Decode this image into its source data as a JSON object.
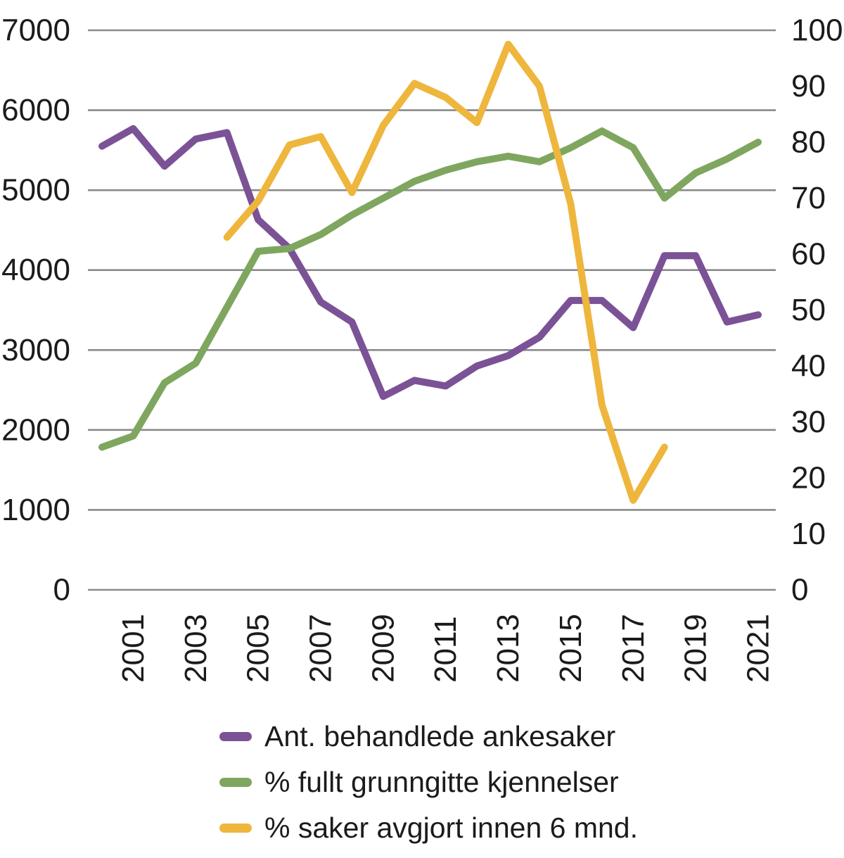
{
  "chart_data": {
    "type": "line",
    "title": "",
    "x": [
      2000,
      2001,
      2002,
      2003,
      2004,
      2005,
      2006,
      2007,
      2008,
      2009,
      2010,
      2011,
      2012,
      2013,
      2014,
      2015,
      2016,
      2017,
      2018,
      2019,
      2020,
      2021
    ],
    "x_tick_labels": [
      2001,
      2003,
      2005,
      2007,
      2009,
      2011,
      2013,
      2015,
      2017,
      2019,
      2021
    ],
    "left_axis": {
      "min": 0,
      "max": 7000,
      "ticks": [
        0,
        1000,
        2000,
        3000,
        4000,
        5000,
        6000,
        7000
      ]
    },
    "right_axis": {
      "min": 0,
      "max": 100,
      "ticks": [
        0,
        10,
        20,
        30,
        40,
        50,
        60,
        70,
        80,
        90,
        100
      ]
    },
    "grid": true,
    "legend_position": "bottom-left",
    "series": [
      {
        "id": "ankesaker",
        "name": "Ant. behandlede ankesaker",
        "axis": "left",
        "color": "#7B5296",
        "values": [
          5550,
          5770,
          5300,
          5640,
          5720,
          4630,
          4270,
          3600,
          3350,
          2420,
          2620,
          2550,
          2800,
          2930,
          3160,
          3620,
          3620,
          3280,
          4180,
          4180,
          3350,
          3440
        ]
      },
      {
        "id": "grunngitte",
        "name": "% fullt grunngitte kjennelser",
        "axis": "right",
        "color": "#7FA65F",
        "values": [
          25.5,
          27.5,
          37,
          40.5,
          50.5,
          60.5,
          61,
          63.5,
          67,
          70,
          73,
          75,
          76.5,
          77.5,
          76.5,
          79,
          82,
          79,
          70,
          74.5,
          77,
          80
        ]
      },
      {
        "id": "innen6mnd",
        "name": "% saker avgjort innen 6 mnd.",
        "axis": "right",
        "color": "#EEB63D",
        "values": [
          null,
          null,
          null,
          null,
          63,
          69.5,
          79.5,
          81,
          71,
          83,
          90.5,
          88,
          83.5,
          97.5,
          90,
          69,
          33,
          16,
          25.5,
          null,
          null,
          null
        ]
      }
    ],
    "colors": {
      "grid": "#8A8A8A",
      "text": "#1B1B1B",
      "background": "#FFFFFF"
    }
  }
}
